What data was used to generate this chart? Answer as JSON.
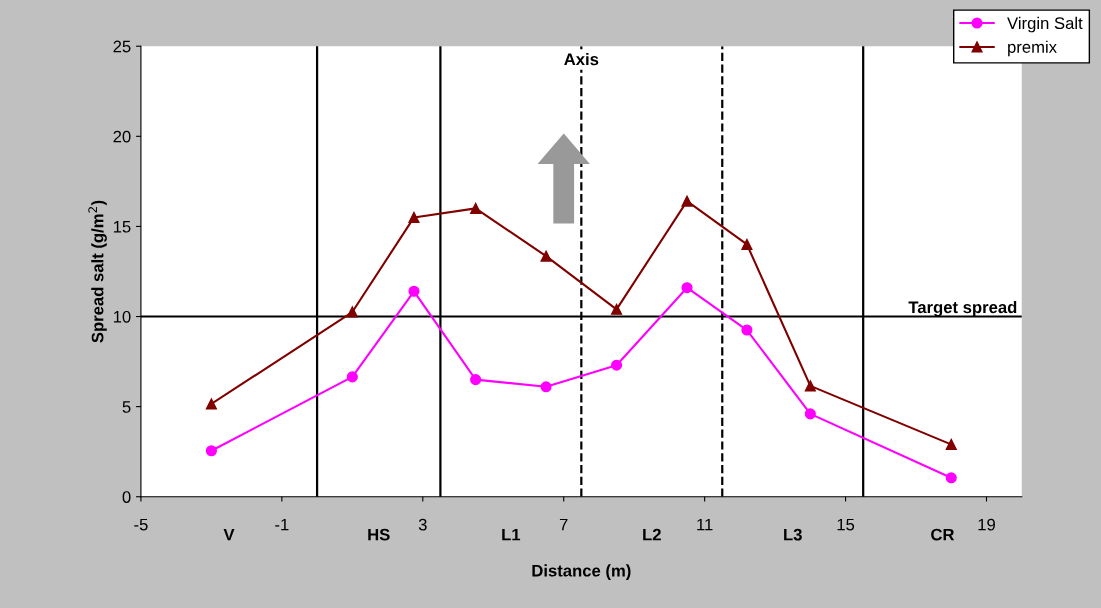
{
  "chart_data": {
    "type": "line",
    "xlabel": "Distance (m)",
    "ylabel": "Spread salt (g/m$^{2}$)",
    "xlim": [
      -5,
      20
    ],
    "xticks": [
      -5,
      -1,
      3,
      7,
      11,
      15,
      19
    ],
    "ylim": [
      0,
      25
    ],
    "yticks": [
      0,
      5,
      10,
      15,
      20,
      25
    ],
    "grid": false,
    "legend": "top right",
    "line_style": "solid",
    "series": [
      {
        "name": "Virgin Salt",
        "color": "#ff00ff",
        "marker": "circle",
        "x": [
          -3,
          1,
          2.75,
          4.5,
          6.5,
          8.5,
          10.5,
          12.2,
          14,
          18
        ],
        "values": [
          2.55,
          6.65,
          11.4,
          6.5,
          6.1,
          7.3,
          11.6,
          9.25,
          4.6,
          1.05
        ]
      },
      {
        "name": "premix",
        "color": "#800000",
        "marker": "triangle",
        "x": [
          -3,
          1,
          2.75,
          4.5,
          6.5,
          8.5,
          10.5,
          12.2,
          14,
          18
        ],
        "values": [
          5.15,
          10.25,
          15.5,
          16.0,
          13.35,
          10.4,
          16.4,
          14.0,
          6.15,
          2.9
        ]
      }
    ],
    "ref_lines": [
      {
        "axis": "y",
        "value": 10,
        "label": "Target spread",
        "color": "#000000",
        "line_style": "solid"
      },
      {
        "axis": "x",
        "value": 0,
        "color": "#000000",
        "line_style": "solid"
      },
      {
        "axis": "x",
        "value": 3.5,
        "color": "#000000",
        "line_style": "solid"
      },
      {
        "axis": "x",
        "value": 7.5,
        "label": "Axis",
        "color": "#000000",
        "line_style": "dashed"
      },
      {
        "axis": "x",
        "value": 11.5,
        "color": "#000000",
        "line_style": "dashed"
      },
      {
        "axis": "x",
        "value": 15.5,
        "color": "#000000",
        "line_style": "solid"
      }
    ],
    "annotations": [
      "V",
      "HS",
      "L1",
      "L2",
      "L3",
      "CR"
    ]
  }
}
